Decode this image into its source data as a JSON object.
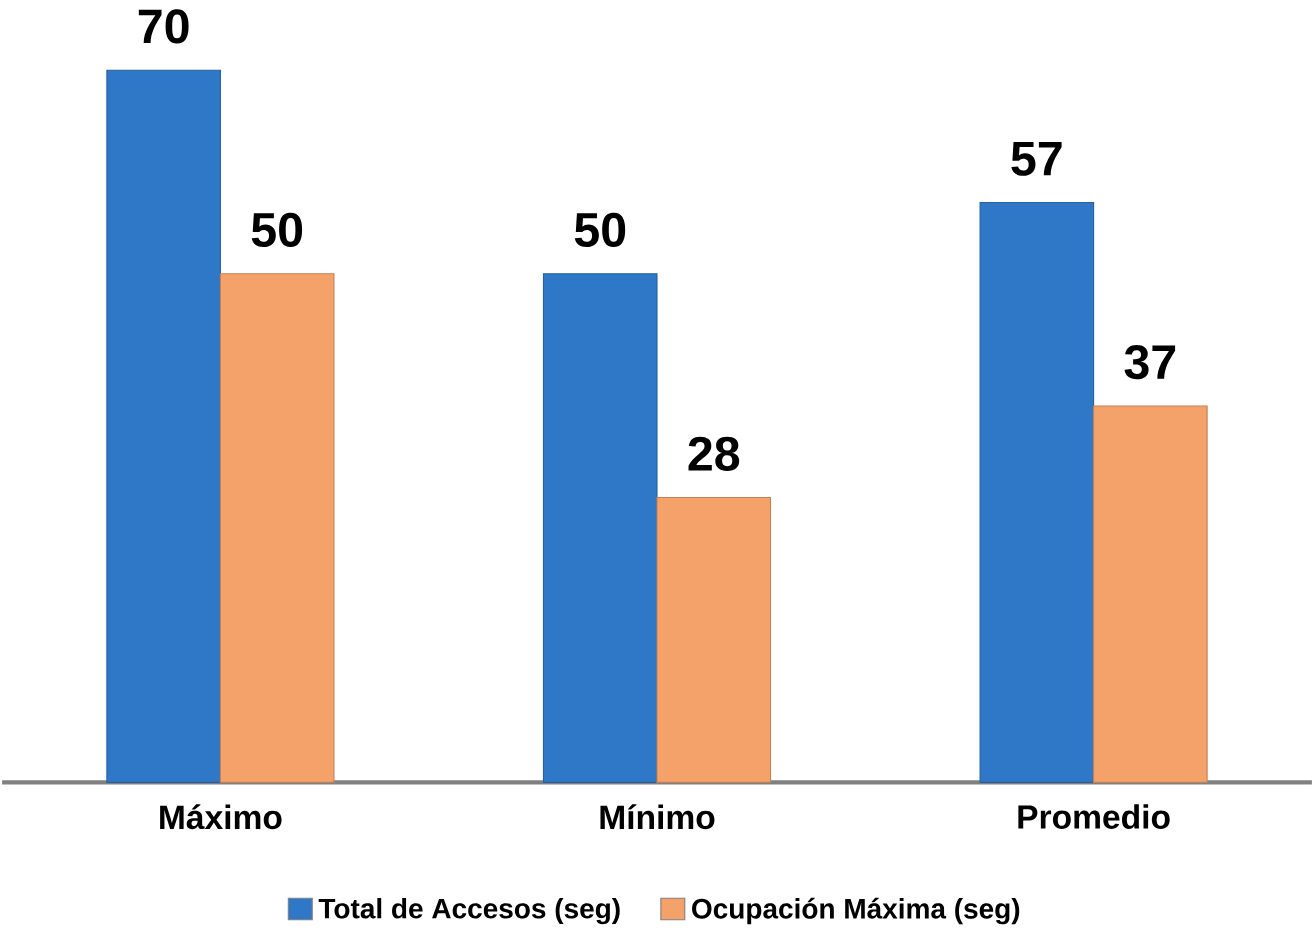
{
  "chart_data": {
    "type": "bar",
    "categories": [
      "Máximo",
      "Mínimo",
      "Promedio"
    ],
    "series": [
      {
        "name": "Total de Accesos (seg)",
        "color": "#2f78c8",
        "values": [
          70,
          50,
          57
        ]
      },
      {
        "name": "Ocupación Máxima (seg)",
        "color": "#f4a26a",
        "values": [
          50,
          28,
          37
        ]
      }
    ],
    "data_labels": true,
    "legend": "bottom"
  }
}
